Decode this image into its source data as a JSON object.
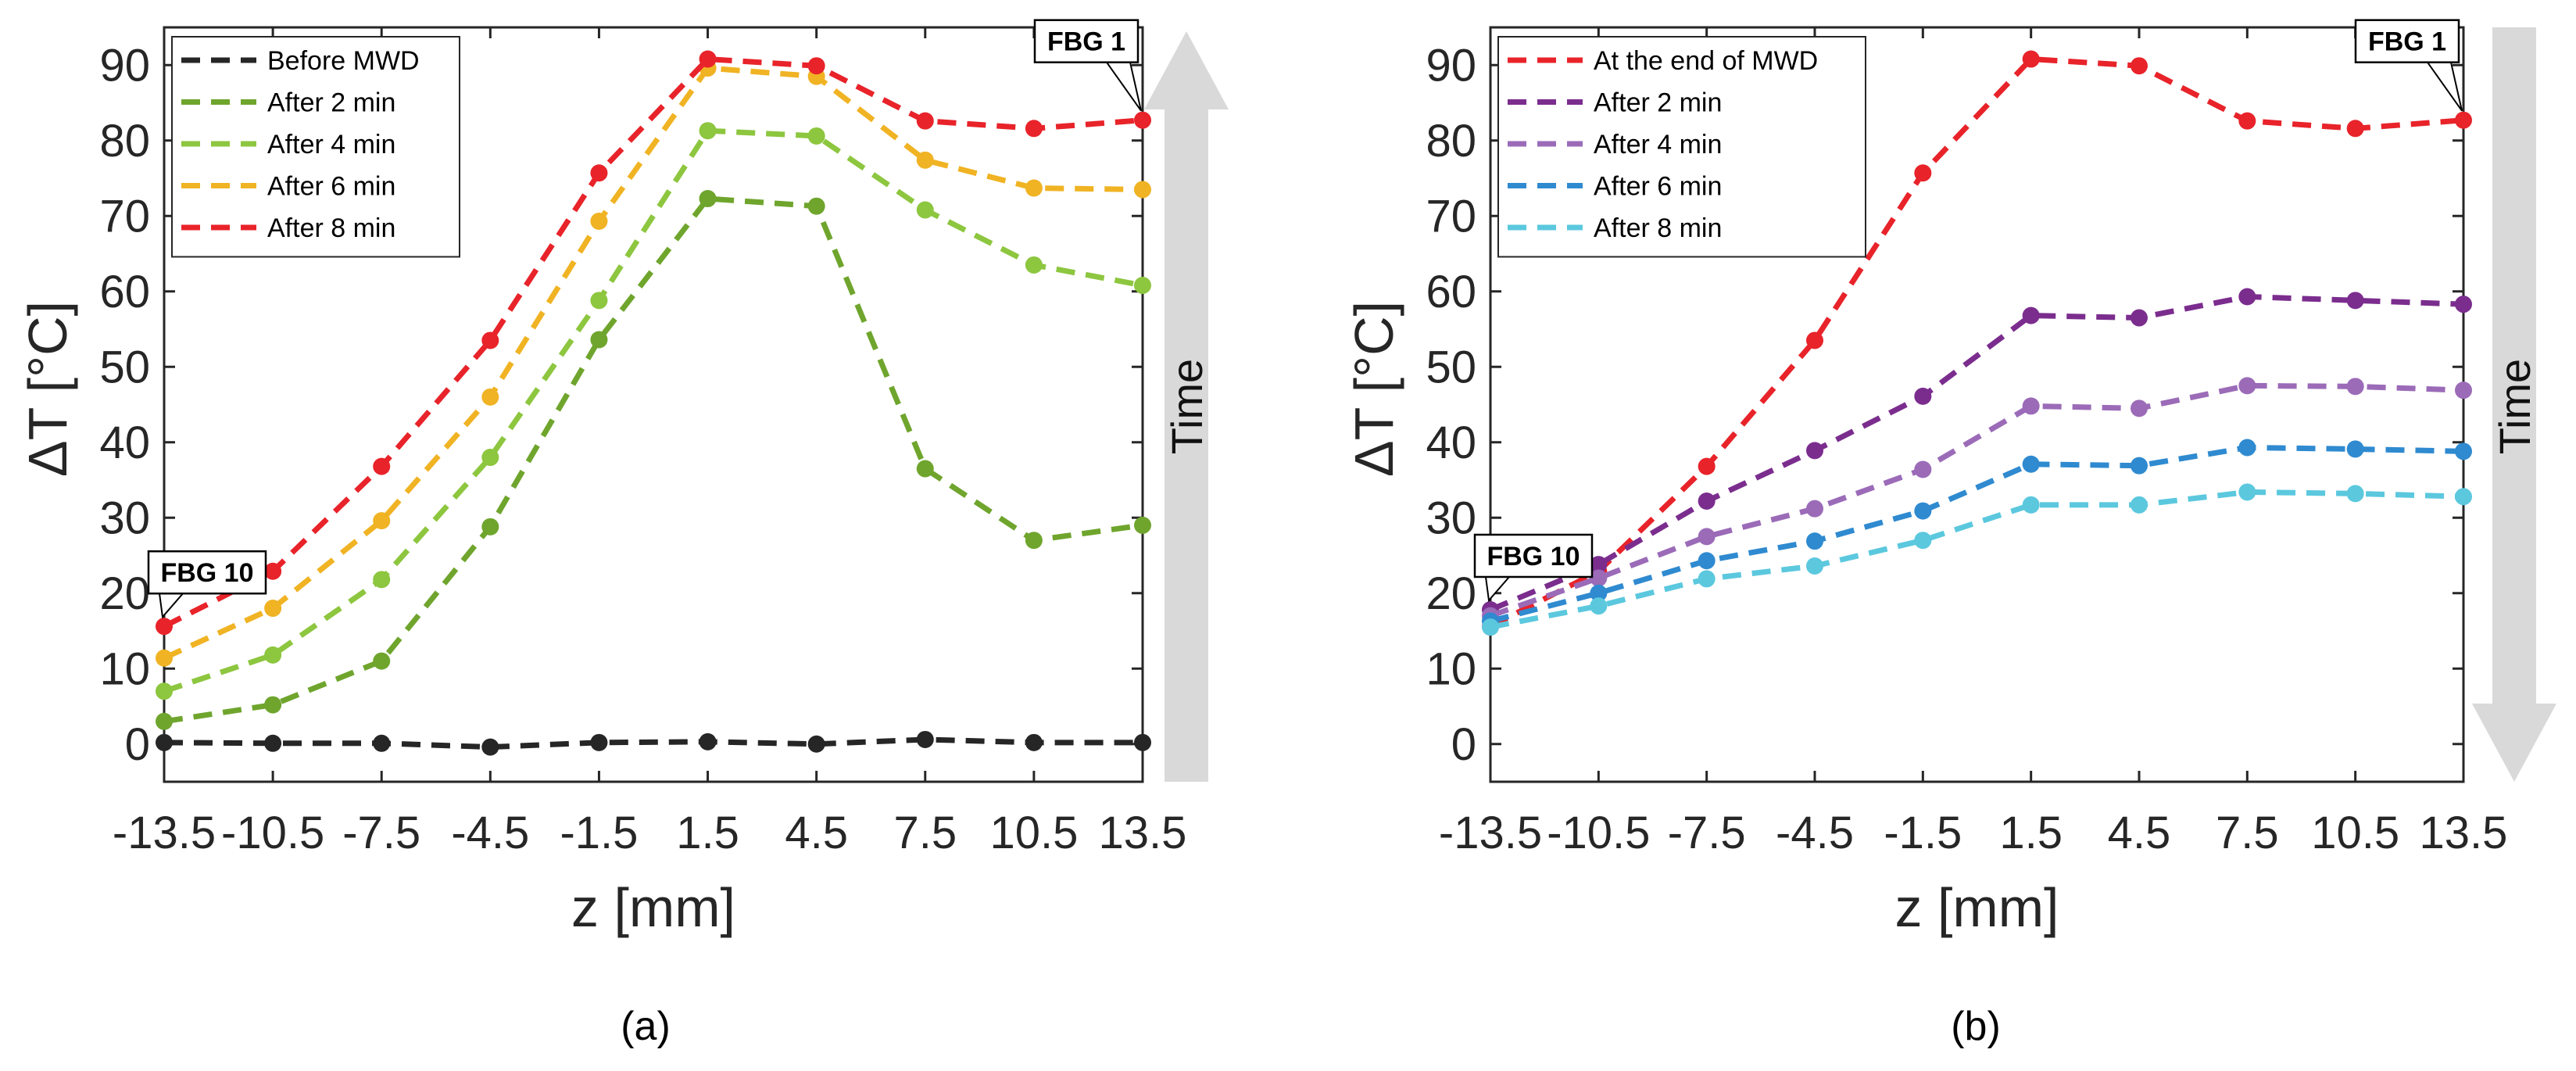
{
  "chart_data": [
    {
      "type": "line",
      "xlabel": "z  [mm]",
      "ylabel": "ΔT [°C]",
      "subtitle": "(a)",
      "categories": [
        "-13.5",
        "-10.5",
        "-7.5",
        "-4.5",
        "-1.5",
        "1.5",
        "4.5",
        "7.5",
        "10.5",
        "13.5"
      ],
      "x": [
        -13.5,
        -10.5,
        -7.5,
        -4.5,
        -1.5,
        1.5,
        4.5,
        7.5,
        10.5,
        13.5
      ],
      "xlim": [
        -13.5,
        13.5
      ],
      "ylim": [
        -5,
        95
      ],
      "yticks": [
        0,
        10,
        20,
        30,
        40,
        50,
        60,
        70,
        80,
        90
      ],
      "legend_position": "top-left",
      "series": [
        {
          "name": "Before MWD",
          "color": "#262626",
          "values": [
            0.2,
            0.1,
            0.1,
            -0.4,
            0.2,
            0.3,
            0.0,
            0.6,
            0.2,
            0.2
          ]
        },
        {
          "name": "After 2 min",
          "color": "#6FA52D",
          "values": [
            3.0,
            5.2,
            11.0,
            28.8,
            53.6,
            72.3,
            71.3,
            36.5,
            27.0,
            29.0
          ]
        },
        {
          "name": "After 4 min",
          "color": "#8DC63F",
          "values": [
            7.0,
            11.8,
            21.8,
            38.0,
            58.8,
            81.3,
            80.6,
            70.8,
            63.5,
            60.8
          ]
        },
        {
          "name": "After 6 min",
          "color": "#F0B323",
          "values": [
            11.4,
            18.0,
            29.6,
            46.0,
            69.3,
            89.6,
            88.5,
            77.4,
            73.7,
            73.5
          ]
        },
        {
          "name": "After 8 min",
          "color": "#E8232A",
          "values": [
            15.6,
            22.9,
            36.8,
            53.5,
            75.7,
            90.8,
            89.9,
            82.6,
            81.6,
            82.7
          ]
        }
      ],
      "annotations": [
        {
          "text": "FBG 10",
          "at_x": -13.5,
          "at_y": 15.6
        },
        {
          "text": "FBG 1",
          "at_x": 13.5,
          "at_y": 82.7
        }
      ],
      "arrow": {
        "label": "Time",
        "direction": "up"
      }
    },
    {
      "type": "line",
      "xlabel": "z  [mm]",
      "ylabel": "ΔT [°C]",
      "subtitle": "(b)",
      "categories": [
        "-13.5",
        "-10.5",
        "-7.5",
        "-4.5",
        "-1.5",
        "1.5",
        "4.5",
        "7.5",
        "10.5",
        "13.5"
      ],
      "x": [
        -13.5,
        -10.5,
        -7.5,
        -4.5,
        -1.5,
        1.5,
        4.5,
        7.5,
        10.5,
        13.5
      ],
      "xlim": [
        -13.5,
        13.5
      ],
      "ylim": [
        -5,
        95
      ],
      "yticks": [
        0,
        10,
        20,
        30,
        40,
        50,
        60,
        70,
        80,
        90
      ],
      "legend_position": "top-left",
      "series": [
        {
          "name": "At the end of MWD",
          "color": "#E8232A",
          "values": [
            15.6,
            22.9,
            36.8,
            53.5,
            75.7,
            90.8,
            89.9,
            82.6,
            81.6,
            82.7
          ]
        },
        {
          "name": "After 2 min",
          "color": "#7B2D8E",
          "values": [
            17.8,
            23.8,
            32.2,
            38.9,
            46.1,
            56.8,
            56.5,
            59.3,
            58.8,
            58.3
          ]
        },
        {
          "name": "After 4 min",
          "color": "#9B6BB8",
          "values": [
            17.0,
            22.0,
            27.5,
            31.2,
            36.4,
            44.8,
            44.5,
            47.5,
            47.4,
            46.9
          ]
        },
        {
          "name": "After 6 min",
          "color": "#2F8AD0",
          "values": [
            16.3,
            20.0,
            24.3,
            26.9,
            30.9,
            37.1,
            36.9,
            39.3,
            39.1,
            38.8
          ]
        },
        {
          "name": "After 8 min",
          "color": "#5BC8DE",
          "values": [
            15.5,
            18.3,
            21.9,
            23.6,
            27.0,
            31.7,
            31.7,
            33.4,
            33.2,
            32.8
          ]
        }
      ],
      "annotations": [
        {
          "text": "FBG 10",
          "at_x": -13.5,
          "at_y": 17.8
        },
        {
          "text": "FBG 1",
          "at_x": 13.5,
          "at_y": 82.7
        }
      ],
      "arrow": {
        "label": "Time",
        "direction": "down"
      }
    }
  ]
}
